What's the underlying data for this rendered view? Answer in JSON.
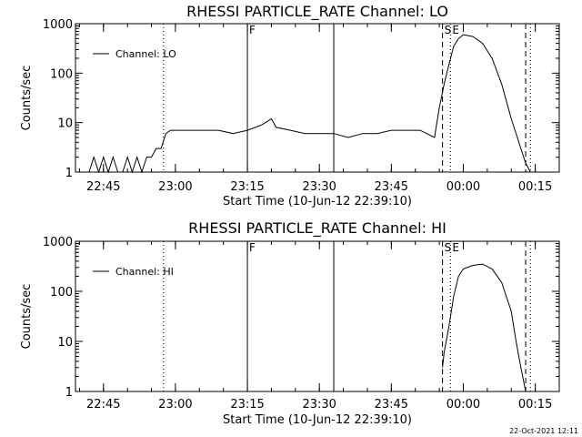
{
  "stamp": "22-Oct-2021 12:11",
  "chart_data": [
    {
      "type": "line",
      "title": "RHESSI PARTICLE_RATE Channel: LO",
      "xlabel": "Start Time (10-Jun-12 22:39:10)",
      "ylabel": "Counts/sec",
      "yscale": "log",
      "ylim": [
        1,
        1000
      ],
      "xlim": [
        "22:39:10",
        "00:20:00"
      ],
      "x_ticks": [
        "22:45",
        "23:00",
        "23:15",
        "23:30",
        "23:45",
        "00:00",
        "00:15"
      ],
      "y_ticks": [
        "1",
        "10",
        "100",
        "1000"
      ],
      "legend": "top-left",
      "series": [
        {
          "name": "Channel: LO",
          "x": [
            "22:41",
            "22:42",
            "22:43",
            "22:44",
            "22:45",
            "22:46",
            "22:47",
            "22:48",
            "22:49",
            "22:50",
            "22:51",
            "22:52",
            "22:53",
            "22:54",
            "22:55",
            "22:56",
            "22:57",
            "22:58",
            "22:59",
            "23:00",
            "23:03",
            "23:06",
            "23:09",
            "23:12",
            "23:15",
            "23:18",
            "23:20",
            "23:21",
            "23:24",
            "23:27",
            "23:30",
            "23:33",
            "23:36",
            "23:39",
            "23:42",
            "23:45",
            "23:48",
            "23:51",
            "23:54",
            "23:55",
            "23:56",
            "23:57",
            "23:58",
            "23:59",
            "00:00",
            "00:02",
            "00:04",
            "00:06",
            "00:08",
            "00:10",
            "00:12",
            "00:13",
            "00:14"
          ],
          "y": [
            1,
            1,
            2,
            1,
            2,
            1,
            2,
            1,
            1,
            2,
            1,
            2,
            1,
            2,
            2,
            3,
            3,
            6,
            7,
            7,
            7,
            7,
            7,
            6,
            7,
            9,
            12,
            8,
            7,
            6,
            6,
            6,
            5,
            6,
            6,
            7,
            7,
            7,
            5,
            20,
            60,
            150,
            350,
            500,
            600,
            550,
            400,
            200,
            60,
            12,
            3,
            1.5,
            1
          ]
        }
      ],
      "markers": [
        {
          "label": "",
          "time": "22:57:30",
          "style": "dotted"
        },
        {
          "label": "F",
          "time": "23:15:00",
          "style": "solid"
        },
        {
          "label": "",
          "time": "23:33:00",
          "style": "solid"
        },
        {
          "label": "S",
          "time": "23:55:40",
          "style": "dashed"
        },
        {
          "label": "E",
          "time": "23:57:20",
          "style": "dotted"
        },
        {
          "label": "",
          "time": "00:13:00",
          "style": "dashed"
        },
        {
          "label": "",
          "time": "00:14:00",
          "style": "dotted"
        }
      ]
    },
    {
      "type": "line",
      "title": "RHESSI PARTICLE_RATE Channel: HI",
      "xlabel": "Start Time (10-Jun-12 22:39:10)",
      "ylabel": "Counts/sec",
      "yscale": "log",
      "ylim": [
        1,
        1000
      ],
      "xlim": [
        "22:39:10",
        "00:20:00"
      ],
      "x_ticks": [
        "22:45",
        "23:00",
        "23:15",
        "23:30",
        "23:45",
        "00:00",
        "00:15"
      ],
      "y_ticks": [
        "1",
        "10",
        "100",
        "1000"
      ],
      "legend": "top-left",
      "series": [
        {
          "name": "Channel: HI",
          "x": [
            "23:55:40",
            "23:56",
            "23:57",
            "23:58",
            "23:59",
            "00:00",
            "00:02",
            "00:04",
            "00:06",
            "00:08",
            "00:10",
            "00:11",
            "00:12",
            "00:13"
          ],
          "y": [
            3,
            6,
            20,
            80,
            200,
            280,
            330,
            350,
            280,
            150,
            40,
            10,
            3,
            1
          ]
        }
      ],
      "markers": [
        {
          "label": "",
          "time": "22:57:30",
          "style": "dotted"
        },
        {
          "label": "F",
          "time": "23:15:00",
          "style": "solid"
        },
        {
          "label": "",
          "time": "23:33:00",
          "style": "solid"
        },
        {
          "label": "S",
          "time": "23:55:40",
          "style": "dashed"
        },
        {
          "label": "E",
          "time": "23:57:20",
          "style": "dotted"
        },
        {
          "label": "",
          "time": "00:13:00",
          "style": "dashed"
        },
        {
          "label": "",
          "time": "00:14:00",
          "style": "dotted"
        }
      ]
    }
  ]
}
